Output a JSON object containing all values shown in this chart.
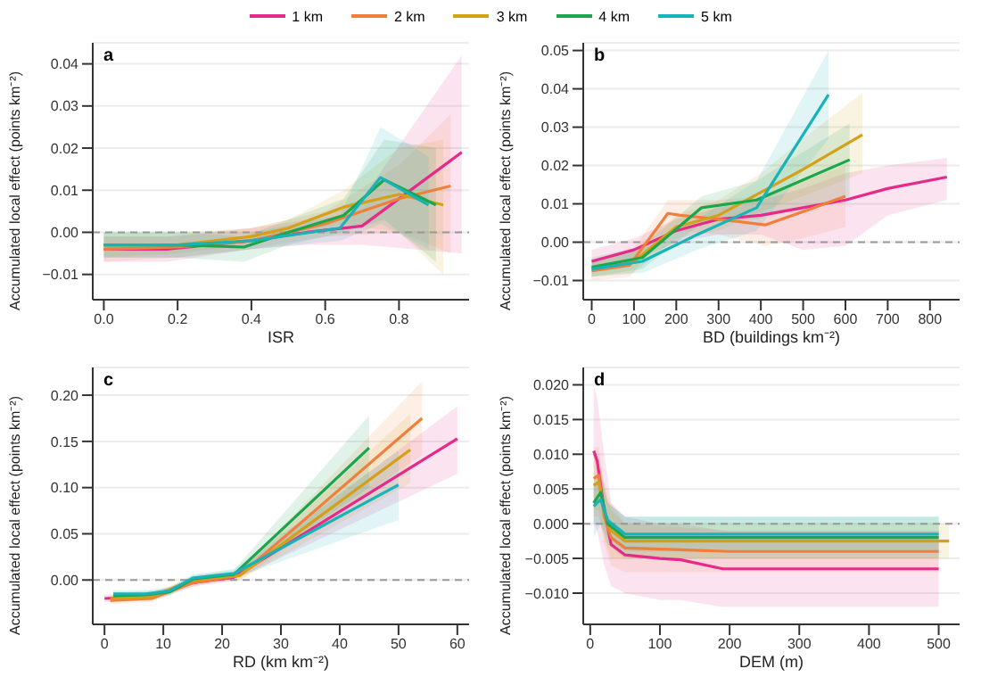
{
  "chart_data": [
    {
      "type": "line",
      "title": "a",
      "xlabel": "ISR",
      "ylabel": "Accumulated local effect (points km⁻²)",
      "legend": "top",
      "grid": "y",
      "xlim": [
        -0.03,
        0.99
      ],
      "xticks": [
        {
          "value": 0,
          "label": "0.0"
        },
        {
          "value": 0.2,
          "label": "0.2"
        },
        {
          "value": 0.4,
          "label": "0.4"
        },
        {
          "value": 0.6,
          "label": "0.6"
        },
        {
          "value": 0.8,
          "label": "0.8"
        }
      ],
      "ylim": [
        -0.016,
        0.045
      ],
      "yticks": [
        {
          "value": -0.01,
          "label": "−0.01"
        },
        {
          "value": 0,
          "label": "0.00"
        },
        {
          "value": 0.01,
          "label": "0.01"
        },
        {
          "value": 0.02,
          "label": "0.02"
        },
        {
          "value": 0.03,
          "label": "0.03"
        },
        {
          "value": 0.04,
          "label": "0.04"
        }
      ],
      "ref_lines": [
        {
          "axis": "y",
          "value": 0,
          "line_style": "dashed",
          "color": "#999999"
        }
      ],
      "series": [
        {
          "name": "1 km",
          "color": "#e7298a",
          "x": [
            0,
            0.17,
            0.4,
            0.55,
            0.7,
            0.97
          ],
          "values": [
            -0.004,
            -0.004,
            -0.002,
            0,
            0.0015,
            0.019
          ],
          "lower": [
            -0.007,
            -0.007,
            -0.004,
            -0.003,
            -0.003,
            -0.005
          ],
          "upper": [
            -0.001,
            -0.001,
            0.001,
            0.003,
            0.008,
            0.042
          ]
        },
        {
          "name": "2 km",
          "color": "#f07f3c",
          "x": [
            0,
            0.2,
            0.4,
            0.6,
            0.8,
            0.94
          ],
          "values": [
            -0.004,
            -0.0035,
            -0.002,
            0.002,
            0.008,
            0.011
          ],
          "lower": [
            -0.007,
            -0.006,
            -0.004,
            -0.001,
            0,
            -0.005
          ],
          "upper": [
            -0.001,
            -0.001,
            0.001,
            0.005,
            0.016,
            0.028
          ]
        },
        {
          "name": "3 km",
          "color": "#d4a017",
          "x": [
            0,
            0.2,
            0.4,
            0.5,
            0.65,
            0.8,
            0.92
          ],
          "values": [
            -0.003,
            -0.003,
            -0.001,
            0.001,
            0.006,
            0.009,
            0.0065
          ],
          "lower": [
            -0.006,
            -0.005,
            -0.003,
            -0.001,
            0.002,
            0,
            -0.01
          ],
          "upper": [
            0,
            0,
            0.001,
            0.003,
            0.01,
            0.02,
            0.022
          ]
        },
        {
          "name": "4 km",
          "color": "#1aa64b",
          "x": [
            0,
            0.2,
            0.38,
            0.5,
            0.65,
            0.76,
            0.9
          ],
          "values": [
            -0.003,
            -0.003,
            -0.0035,
            0,
            0.004,
            0.0125,
            0.0065
          ],
          "lower": [
            -0.006,
            -0.006,
            -0.007,
            -0.003,
            0,
            0.003,
            -0.007
          ],
          "upper": [
            0,
            0,
            -0.001,
            0.003,
            0.008,
            0.022,
            0.02
          ]
        },
        {
          "name": "5 km",
          "color": "#17b3b8",
          "x": [
            0,
            0.2,
            0.4,
            0.64,
            0.75,
            0.88
          ],
          "values": [
            -0.003,
            -0.003,
            -0.002,
            0.001,
            0.013,
            0.0065
          ],
          "lower": [
            -0.006,
            -0.006,
            -0.004,
            -0.002,
            0.002,
            -0.004
          ],
          "upper": [
            0,
            0,
            0,
            0.004,
            0.025,
            0.018
          ]
        }
      ]
    },
    {
      "type": "line",
      "title": "b",
      "xlabel": "BD (buildings km⁻²)",
      "ylabel": "Accumulated local effect (points km⁻²)",
      "grid": "y",
      "xlim": [
        -20,
        870
      ],
      "xticks": [
        0,
        100,
        200,
        300,
        400,
        500,
        600,
        700,
        800
      ],
      "ylim": [
        -0.015,
        0.052
      ],
      "yticks": [
        {
          "value": -0.01,
          "label": "−0.01"
        },
        {
          "value": 0,
          "label": "0.00"
        },
        {
          "value": 0.01,
          "label": "0.01"
        },
        {
          "value": 0.02,
          "label": "0.02"
        },
        {
          "value": 0.03,
          "label": "0.03"
        },
        {
          "value": 0.04,
          "label": "0.04"
        },
        {
          "value": 0.05,
          "label": "0.05"
        }
      ],
      "ref_lines": [
        {
          "axis": "y",
          "value": 0,
          "line_style": "dashed",
          "color": "#999999"
        }
      ],
      "series": [
        {
          "color": "#e7298a",
          "x": [
            0,
            100,
            200,
            300,
            400,
            500,
            600,
            700,
            840
          ],
          "values": [
            -0.005,
            -0.002,
            0.003,
            0.006,
            0.007,
            0.009,
            0.011,
            0.014,
            0.017
          ],
          "lower": [
            -0.008,
            -0.005,
            0,
            0.002,
            0.002,
            -0.002,
            -0.001,
            0.007,
            0.011
          ],
          "upper": [
            -0.002,
            0.001,
            0.006,
            0.009,
            0.011,
            0.014,
            0.018,
            0.02,
            0.022
          ]
        },
        {
          "color": "#f07f3c",
          "x": [
            0,
            90,
            180,
            210,
            300,
            410,
            500,
            600
          ],
          "values": [
            -0.0075,
            -0.006,
            0.0075,
            0.007,
            0.006,
            0.0045,
            0.008,
            0.012
          ],
          "lower": [
            -0.01,
            -0.009,
            0.003,
            0.003,
            0.002,
            -0.001,
            0.001,
            0.004
          ],
          "upper": [
            -0.005,
            -0.003,
            0.011,
            0.011,
            0.011,
            0.012,
            0.016,
            0.02
          ]
        },
        {
          "color": "#d4a017",
          "x": [
            0,
            100,
            200,
            300,
            400,
            500,
            640
          ],
          "values": [
            -0.007,
            -0.005,
            0.004,
            0.007,
            0.013,
            0.019,
            0.028
          ],
          "lower": [
            -0.009,
            -0.008,
            0.001,
            0.003,
            0.008,
            0.012,
            0.018
          ],
          "upper": [
            -0.005,
            -0.002,
            0.007,
            0.011,
            0.018,
            0.027,
            0.039
          ]
        },
        {
          "color": "#1aa64b",
          "x": [
            0,
            120,
            260,
            390,
            610
          ],
          "values": [
            -0.0065,
            -0.004,
            0.009,
            0.011,
            0.0215
          ],
          "lower": [
            -0.009,
            -0.007,
            0.005,
            0.006,
            0.012
          ],
          "upper": [
            -0.004,
            -0.001,
            0.012,
            0.016,
            0.031
          ]
        },
        {
          "color": "#17b3b8",
          "x": [
            0,
            120,
            250,
            390,
            560
          ],
          "values": [
            -0.007,
            -0.005,
            0.002,
            0.009,
            0.0385
          ],
          "lower": [
            -0.009,
            -0.008,
            -0.002,
            0.003,
            0.027
          ],
          "upper": [
            -0.005,
            -0.002,
            0.006,
            0.016,
            0.05
          ]
        }
      ]
    },
    {
      "type": "line",
      "title": "c",
      "xlabel": "RD (km km⁻²)",
      "ylabel": "Accumulated local effect (points km⁻²)",
      "grid": "y",
      "xlim": [
        -2,
        62
      ],
      "xticks": [
        0,
        10,
        20,
        30,
        40,
        50,
        60
      ],
      "ylim": [
        -0.048,
        0.23
      ],
      "yticks": [
        {
          "value": 0,
          "label": "0.00"
        },
        {
          "value": 0.05,
          "label": "0.05"
        },
        {
          "value": 0.1,
          "label": "0.10"
        },
        {
          "value": 0.15,
          "label": "0.15"
        },
        {
          "value": 0.2,
          "label": "0.20"
        }
      ],
      "ref_lines": [
        {
          "axis": "y",
          "value": 0,
          "line_style": "dashed",
          "color": "#999999"
        }
      ],
      "series": [
        {
          "color": "#e7298a",
          "x": [
            0,
            8,
            15,
            22,
            60
          ],
          "values": [
            -0.02,
            -0.018,
            -0.003,
            0.003,
            0.153
          ],
          "lower": [
            -0.024,
            -0.022,
            -0.007,
            0,
            0.115
          ],
          "upper": [
            -0.016,
            -0.014,
            0.001,
            0.007,
            0.188
          ]
        },
        {
          "color": "#f07f3c",
          "x": [
            1,
            8,
            15,
            23,
            54
          ],
          "values": [
            -0.022,
            -0.02,
            -0.003,
            0.005,
            0.175
          ],
          "lower": [
            -0.026,
            -0.024,
            -0.007,
            0,
            0.135
          ],
          "upper": [
            -0.018,
            -0.016,
            0.001,
            0.01,
            0.215
          ]
        },
        {
          "color": "#d4a017",
          "x": [
            1,
            8,
            15,
            23,
            52
          ],
          "values": [
            -0.02,
            -0.018,
            0,
            0.005,
            0.141
          ],
          "lower": [
            -0.024,
            -0.022,
            -0.004,
            0,
            0.105
          ],
          "upper": [
            -0.016,
            -0.014,
            0.004,
            0.01,
            0.18
          ]
        },
        {
          "color": "#1aa64b",
          "x": [
            1.5,
            7,
            11,
            15,
            22,
            45
          ],
          "values": [
            -0.017,
            -0.016,
            -0.013,
            0.001,
            0.006,
            0.143
          ],
          "lower": [
            -0.021,
            -0.02,
            -0.017,
            -0.003,
            0.001,
            0.1
          ],
          "upper": [
            -0.013,
            -0.012,
            -0.009,
            0.005,
            0.011,
            0.178
          ]
        },
        {
          "color": "#17b3b8",
          "x": [
            1.5,
            7,
            11,
            15,
            22,
            50
          ],
          "values": [
            -0.015,
            -0.015,
            -0.012,
            0.002,
            0.007,
            0.103
          ],
          "lower": [
            -0.019,
            -0.019,
            -0.016,
            -0.002,
            0.002,
            0.065
          ],
          "upper": [
            -0.011,
            -0.011,
            -0.008,
            0.006,
            0.012,
            0.14
          ]
        }
      ]
    },
    {
      "type": "line",
      "title": "d",
      "xlabel": "DEM (m)",
      "ylabel": "Accumulated local effect (points km⁻²)",
      "grid": "y",
      "xlim": [
        -10,
        530
      ],
      "xticks": [
        0,
        100,
        200,
        300,
        400,
        500
      ],
      "ylim": [
        -0.0145,
        0.0225
      ],
      "yticks": [
        {
          "value": -0.01,
          "label": "−0.010"
        },
        {
          "value": -0.005,
          "label": "−0.005"
        },
        {
          "value": 0,
          "label": "0.000"
        },
        {
          "value": 0.005,
          "label": "0.005"
        },
        {
          "value": 0.01,
          "label": "0.010"
        },
        {
          "value": 0.015,
          "label": "0.015"
        },
        {
          "value": 0.02,
          "label": "0.020"
        }
      ],
      "ref_lines": [
        {
          "axis": "y",
          "value": 0,
          "line_style": "dashed",
          "color": "#999999"
        }
      ],
      "series": [
        {
          "color": "#e7298a",
          "x": [
            5,
            10,
            20,
            30,
            50,
            100,
            130,
            190,
            300,
            500
          ],
          "values": [
            0.0105,
            0.009,
            0.002,
            -0.003,
            -0.0045,
            -0.005,
            -0.0052,
            -0.0065,
            -0.0065,
            -0.0065
          ],
          "lower": [
            0,
            -0.001,
            -0.006,
            -0.009,
            -0.01,
            -0.011,
            -0.011,
            -0.012,
            -0.012,
            -0.012
          ],
          "upper": [
            0.02,
            0.018,
            0.01,
            0.003,
            0.001,
            0,
            0,
            -0.001,
            -0.001,
            -0.001
          ]
        },
        {
          "color": "#f07f3c",
          "x": [
            5,
            12,
            20,
            30,
            50,
            200,
            500
          ],
          "values": [
            0.0065,
            0.007,
            0.001,
            -0.002,
            -0.0035,
            -0.004,
            -0.004
          ],
          "lower": [
            0.002,
            0.002,
            -0.003,
            -0.006,
            -0.007,
            -0.007,
            -0.007
          ],
          "upper": [
            0.011,
            0.011,
            0.005,
            0.002,
            0,
            -0.001,
            -0.001
          ]
        },
        {
          "color": "#d4a017",
          "x": [
            5,
            12,
            20,
            30,
            50,
            200,
            515
          ],
          "values": [
            0.0055,
            0.006,
            0.002,
            -0.001,
            -0.0025,
            -0.0025,
            -0.0025
          ],
          "lower": [
            0.001,
            0.001,
            -0.002,
            -0.005,
            -0.005,
            -0.005,
            -0.005
          ],
          "upper": [
            0.01,
            0.01,
            0.006,
            0.003,
            0,
            0,
            0
          ]
        },
        {
          "color": "#1aa64b",
          "x": [
            5,
            15,
            25,
            50,
            500
          ],
          "values": [
            0.003,
            0.0045,
            0,
            -0.002,
            -0.002
          ],
          "lower": [
            0,
            0,
            -0.003,
            -0.005,
            -0.005
          ],
          "upper": [
            0.006,
            0.008,
            0.003,
            0.001,
            0.001
          ]
        },
        {
          "color": "#17b3b8",
          "x": [
            5,
            15,
            25,
            50,
            500
          ],
          "values": [
            0.0025,
            0.0035,
            0.0005,
            -0.0015,
            -0.0015
          ],
          "lower": [
            -0.002,
            0,
            -0.002,
            -0.004,
            -0.004
          ],
          "upper": [
            0.005,
            0.007,
            0.003,
            0.001,
            0.001
          ]
        }
      ]
    }
  ]
}
